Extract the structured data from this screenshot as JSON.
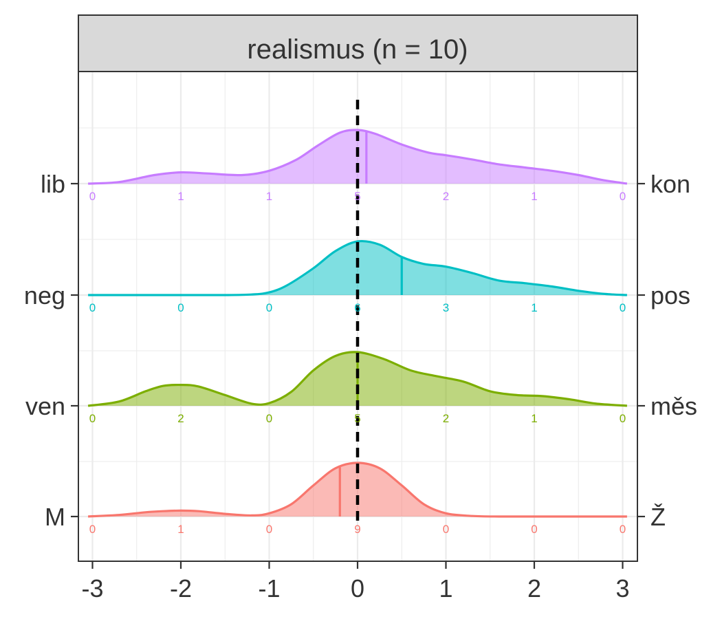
{
  "chart_data": {
    "type": "ridgeline",
    "title": "realismus (n = 10)",
    "xlabel": "",
    "ylabel": "",
    "xlim": [
      -3,
      3
    ],
    "x_ticks": [
      "-3",
      "-2",
      "-1",
      "0",
      "1",
      "2",
      "3"
    ],
    "grid": true,
    "reference_line": {
      "x": 0,
      "style": "dashed",
      "color": "#000000"
    },
    "count_positions": [
      -3,
      -2,
      -1,
      0,
      1,
      2,
      3
    ],
    "rows": [
      {
        "left_label": "lib",
        "right_label": "kon",
        "color": "#C77CFF",
        "counts": [
          0,
          1,
          1,
          5,
          2,
          1,
          0
        ],
        "mean": 0.1,
        "density_x": [
          -3.05,
          -2.7,
          -2.3,
          -2.0,
          -1.7,
          -1.3,
          -1.0,
          -0.7,
          -0.45,
          -0.2,
          0.0,
          0.2,
          0.5,
          0.8,
          1.0,
          1.3,
          1.6,
          1.9,
          2.2,
          2.5,
          2.8,
          3.05
        ],
        "density_y": [
          0.0,
          0.03,
          0.16,
          0.21,
          0.19,
          0.16,
          0.24,
          0.44,
          0.71,
          0.95,
          1.0,
          0.93,
          0.73,
          0.58,
          0.53,
          0.45,
          0.36,
          0.3,
          0.24,
          0.16,
          0.06,
          0.0
        ]
      },
      {
        "left_label": "neg",
        "right_label": "pos",
        "color": "#00BFC4",
        "counts": [
          0,
          0,
          0,
          6,
          3,
          1,
          0
        ],
        "mean": 0.5,
        "density_x": [
          -3.05,
          -2.0,
          -1.5,
          -1.2,
          -1.0,
          -0.8,
          -0.5,
          -0.25,
          0.0,
          0.25,
          0.5,
          0.75,
          1.0,
          1.3,
          1.6,
          1.9,
          2.2,
          2.5,
          2.8,
          3.05
        ],
        "density_y": [
          0.0,
          0.0,
          0.0,
          0.01,
          0.05,
          0.18,
          0.5,
          0.82,
          1.0,
          0.94,
          0.71,
          0.58,
          0.53,
          0.41,
          0.27,
          0.22,
          0.16,
          0.08,
          0.02,
          0.0
        ]
      },
      {
        "left_label": "ven",
        "right_label": "měs",
        "color": "#7CAE00",
        "counts": [
          0,
          2,
          0,
          5,
          2,
          1,
          0
        ],
        "mean": 0.0,
        "density_x": [
          -3.05,
          -2.7,
          -2.4,
          -2.2,
          -2.0,
          -1.8,
          -1.5,
          -1.2,
          -1.0,
          -0.75,
          -0.5,
          -0.25,
          0.0,
          0.3,
          0.6,
          0.9,
          1.2,
          1.5,
          1.8,
          2.1,
          2.4,
          2.7,
          3.05
        ],
        "density_y": [
          0.0,
          0.08,
          0.27,
          0.37,
          0.39,
          0.36,
          0.2,
          0.04,
          0.05,
          0.26,
          0.66,
          0.93,
          1.0,
          0.87,
          0.66,
          0.55,
          0.45,
          0.27,
          0.2,
          0.18,
          0.12,
          0.04,
          0.0
        ]
      },
      {
        "left_label": "M",
        "right_label": "Ž",
        "color": "#F8766D",
        "counts": [
          0,
          1,
          0,
          9,
          0,
          0,
          0
        ],
        "mean": -0.2,
        "density_x": [
          -3.05,
          -2.7,
          -2.4,
          -2.2,
          -2.0,
          -1.8,
          -1.5,
          -1.2,
          -1.0,
          -0.75,
          -0.5,
          -0.25,
          0.0,
          0.25,
          0.5,
          0.75,
          1.0,
          1.3,
          1.6,
          2.0,
          3.05
        ],
        "density_y": [
          0.0,
          0.03,
          0.08,
          0.1,
          0.11,
          0.1,
          0.05,
          0.02,
          0.06,
          0.23,
          0.58,
          0.9,
          1.0,
          0.9,
          0.58,
          0.23,
          0.06,
          0.01,
          0.0,
          0.0,
          0.0
        ]
      }
    ]
  }
}
